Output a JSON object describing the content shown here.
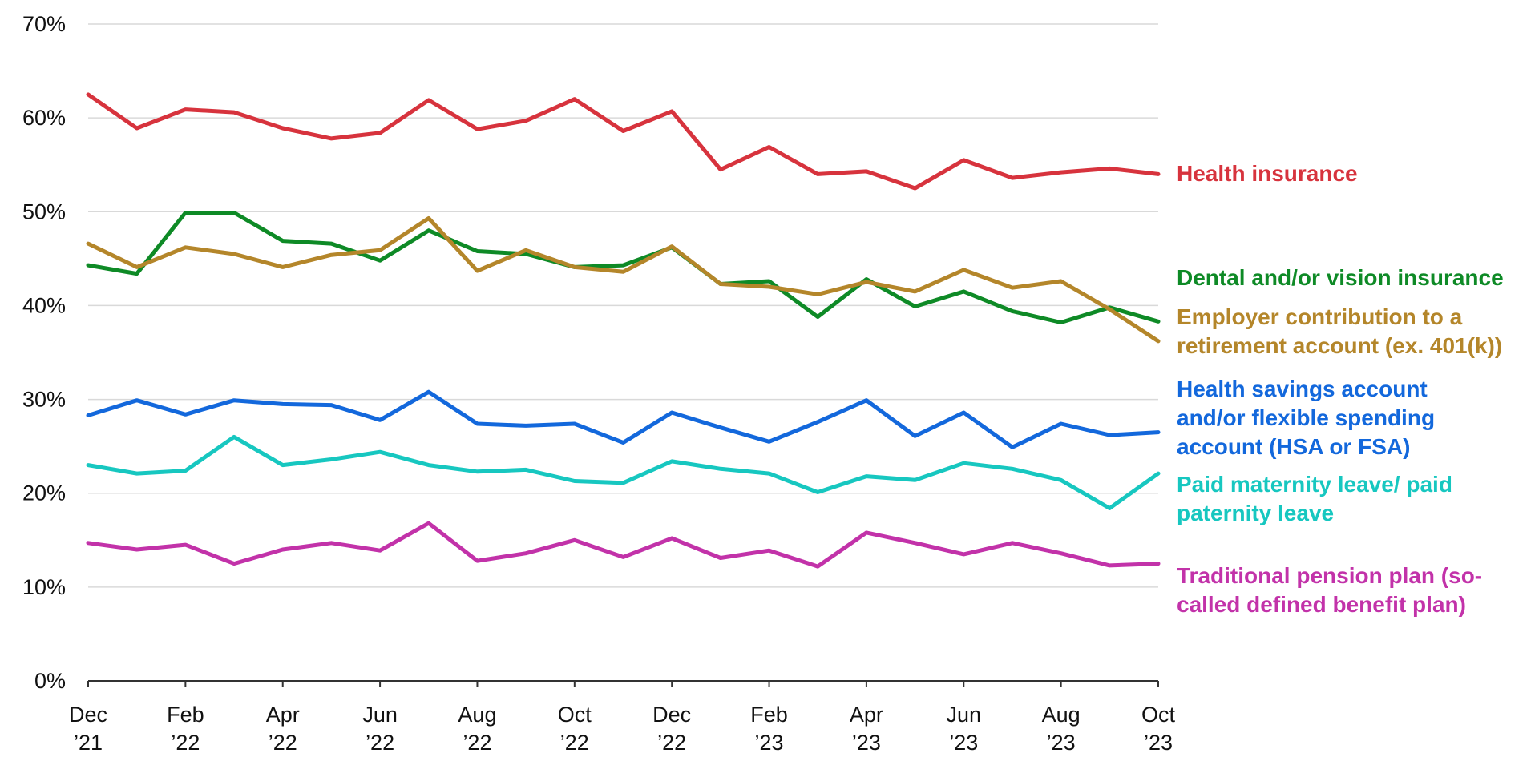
{
  "chart_data": {
    "type": "line",
    "ylim": [
      0,
      70
    ],
    "yticks": [
      "0%",
      "10%",
      "20%",
      "30%",
      "40%",
      "50%",
      "60%",
      "70%"
    ],
    "yticks_values": [
      0,
      10,
      20,
      30,
      40,
      50,
      60,
      70
    ],
    "grid": true,
    "legend": "right-inline",
    "x": [
      "Dec 2021",
      "Jan 2022",
      "Feb 2022",
      "Mar 2022",
      "Apr 2022",
      "May 2022",
      "Jun 2022",
      "Jul 2022",
      "Aug 2022",
      "Sep 2022",
      "Oct 2022",
      "Nov 2022",
      "Dec 2022",
      "Jan 2023",
      "Feb 2023",
      "Mar 2023",
      "Apr 2023",
      "May 2023",
      "Jun 2023",
      "Jul 2023",
      "Aug 2023",
      "Sep 2023",
      "Oct 2023"
    ],
    "xtick_labels": [
      {
        "index": 0,
        "month": "Dec",
        "year": "’21"
      },
      {
        "index": 2,
        "month": "Feb",
        "year": "’22"
      },
      {
        "index": 4,
        "month": "Apr",
        "year": "’22"
      },
      {
        "index": 6,
        "month": "Jun",
        "year": "’22"
      },
      {
        "index": 8,
        "month": "Aug",
        "year": "’22"
      },
      {
        "index": 10,
        "month": "Oct",
        "year": "’22"
      },
      {
        "index": 12,
        "month": "Dec",
        "year": "’22"
      },
      {
        "index": 14,
        "month": "Feb",
        "year": "’23"
      },
      {
        "index": 16,
        "month": "Apr",
        "year": "’23"
      },
      {
        "index": 18,
        "month": "Jun",
        "year": "’23"
      },
      {
        "index": 20,
        "month": "Aug",
        "year": "’23"
      },
      {
        "index": 22,
        "month": "Oct",
        "year": "’23"
      }
    ],
    "series": [
      {
        "name": "Health insurance",
        "label_lines": [
          "Health insurance"
        ],
        "color": "#d7333d",
        "values": [
          62.5,
          58.9,
          60.9,
          60.6,
          58.9,
          57.8,
          58.4,
          61.9,
          58.8,
          59.7,
          62.0,
          58.6,
          60.7,
          54.5,
          56.9,
          54.0,
          54.3,
          52.5,
          55.5,
          53.6,
          54.2,
          54.6,
          54.0
        ]
      },
      {
        "name": "Dental and/or vision insurance",
        "label_lines": [
          "Dental and/or vision insurance"
        ],
        "color": "#0e8a26",
        "values": [
          44.3,
          43.4,
          49.9,
          49.9,
          46.9,
          46.6,
          44.8,
          48.0,
          45.8,
          45.5,
          44.1,
          44.3,
          46.2,
          42.3,
          42.6,
          38.8,
          42.8,
          39.9,
          41.5,
          39.4,
          38.2,
          39.8,
          38.3
        ]
      },
      {
        "name": "Employer contribution to a retirement account (ex. 401(k))",
        "label_lines": [
          "Employer contribution to a",
          "retirement account (ex. 401(k))"
        ],
        "color": "#b4862a",
        "values": [
          46.6,
          44.1,
          46.2,
          45.5,
          44.1,
          45.4,
          45.9,
          49.3,
          43.7,
          45.9,
          44.1,
          43.6,
          46.3,
          42.3,
          42.0,
          41.2,
          42.5,
          41.5,
          43.8,
          41.9,
          42.6,
          39.6,
          36.2
        ]
      },
      {
        "name": "Health savings account and/or flexible spending account (HSA or FSA)",
        "label_lines": [
          "Health savings account",
          "and/or flexible spending",
          "account (HSA or FSA)"
        ],
        "color": "#1368dc",
        "values": [
          28.3,
          29.9,
          28.4,
          29.9,
          29.5,
          29.4,
          27.8,
          30.8,
          27.4,
          27.2,
          27.4,
          25.4,
          28.6,
          27.0,
          25.5,
          27.6,
          29.9,
          26.1,
          28.6,
          24.9,
          27.4,
          26.2,
          26.5
        ]
      },
      {
        "name": "Paid maternity leave/ paid paternity leave",
        "label_lines": [
          "Paid maternity leave/ paid",
          "paternity leave"
        ],
        "color": "#17c7c0",
        "values": [
          23.0,
          22.1,
          22.4,
          26.0,
          23.0,
          23.6,
          24.4,
          23.0,
          22.3,
          22.5,
          21.3,
          21.1,
          23.4,
          22.6,
          22.1,
          20.1,
          21.8,
          21.4,
          23.2,
          22.6,
          21.4,
          18.4,
          22.1
        ]
      },
      {
        "name": "Traditional pension plan (so-called defined benefit plan)",
        "label_lines": [
          "Traditional pension plan (so-",
          "called defined benefit plan)"
        ],
        "color": "#c232a9",
        "values": [
          14.7,
          14.0,
          14.5,
          12.5,
          14.0,
          14.7,
          13.9,
          16.8,
          12.8,
          13.6,
          15.0,
          13.2,
          15.2,
          13.1,
          13.9,
          12.2,
          15.8,
          14.7,
          13.5,
          14.7,
          13.6,
          12.3,
          12.5
        ]
      }
    ]
  }
}
